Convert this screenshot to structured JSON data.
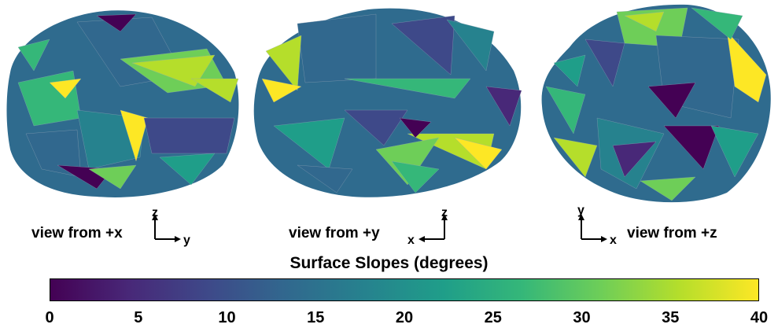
{
  "views": [
    {
      "label": "view from +x",
      "axis_vertical": "z",
      "axis_horizontal": "y"
    },
    {
      "label": "view from +y",
      "axis_vertical": "z",
      "axis_horizontal": "x"
    },
    {
      "label": "view from +z",
      "axis_vertical": "y",
      "axis_horizontal": "x"
    }
  ],
  "colorbar": {
    "title": "Surface Slopes (degrees)",
    "ticks": [
      "0",
      "5",
      "10",
      "15",
      "20",
      "25",
      "30",
      "35",
      "40"
    ],
    "min": 0,
    "max": 40,
    "colormap": "viridis",
    "colors": [
      "#440154",
      "#482878",
      "#3e4989",
      "#31688e",
      "#26828e",
      "#1f9e89",
      "#35b779",
      "#6ece58",
      "#b5de2b",
      "#fde725"
    ]
  }
}
